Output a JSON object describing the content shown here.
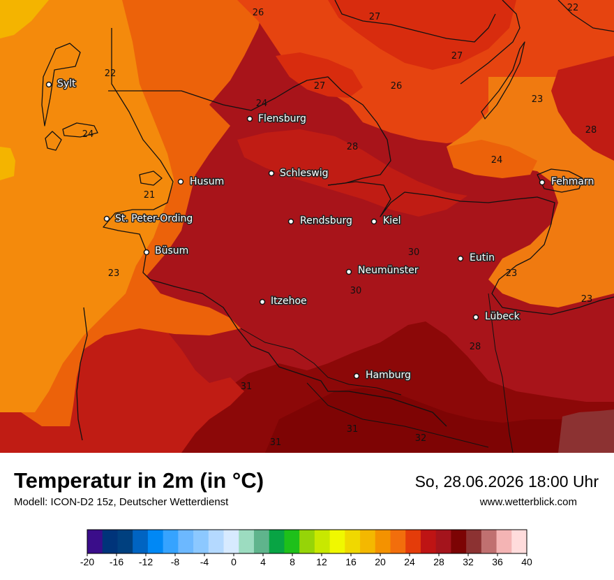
{
  "title": "Temperatur in 2m (in °C)",
  "model": "Modell: ICON-D2 15z, Deutscher Wetterdienst",
  "datetime": "So, 28.06.2026 18:00 Uhr",
  "website": "www.wetterblick.com",
  "legend": {
    "ticks": [
      "-20",
      "-16",
      "-12",
      "-8",
      "-4",
      "0",
      "4",
      "8",
      "12",
      "16",
      "20",
      "24",
      "28",
      "32",
      "36",
      "40"
    ],
    "colors": [
      "#3a0d8a",
      "#00347a",
      "#00407f",
      "#0064c2",
      "#0088f5",
      "#36a3ff",
      "#6cb8ff",
      "#8cc8ff",
      "#b4d9ff",
      "#d7eaff",
      "#9cdcc0",
      "#5fb48c",
      "#08a444",
      "#1ec01a",
      "#96d408",
      "#c8e800",
      "#f0f800",
      "#f0d800",
      "#f4b800",
      "#f49200",
      "#f26e0c",
      "#e43c0a",
      "#be1414",
      "#a4141c",
      "#7c0404",
      "#8c3232",
      "#c07070",
      "#f4b4b4",
      "#ffdcdc"
    ]
  },
  "map": {
    "colors": {
      "t21": "#f5870f",
      "t22": "#f48a0c",
      "t23": "#f07a10",
      "t24": "#ec620a",
      "t26": "#e64410",
      "t27": "#d82c0e",
      "t28": "#c01c14",
      "t30": "#a8141a",
      "t31": "#8c0808",
      "t32": "#7e0404",
      "t33": "#8c3232",
      "t20": "#f4b400"
    },
    "cities": [
      {
        "name": "Sylt"
      },
      {
        "name": "Flensburg"
      },
      {
        "name": "Husum"
      },
      {
        "name": "Schleswig"
      },
      {
        "name": "St. Peter-Ording"
      },
      {
        "name": "Rendsburg"
      },
      {
        "name": "Kiel"
      },
      {
        "name": "Büsum"
      },
      {
        "name": "Neumünster"
      },
      {
        "name": "Eutin"
      },
      {
        "name": "Fehmarn"
      },
      {
        "name": "Itzehoe"
      },
      {
        "name": "Lübeck"
      },
      {
        "name": "Hamburg"
      }
    ],
    "isolabels": [
      "26",
      "27",
      "22",
      "27",
      "22",
      "27",
      "26",
      "24",
      "23",
      "28",
      "24",
      "28",
      "24",
      "21",
      "30",
      "23",
      "23",
      "30",
      "23",
      "28",
      "31",
      "31",
      "31",
      "32"
    ]
  }
}
